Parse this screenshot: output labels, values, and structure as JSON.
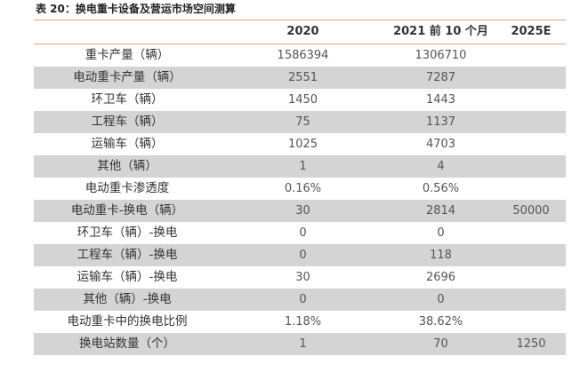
{
  "caption": "表 20：换电重卡设备及营运市场空间测算",
  "table": {
    "headers": [
      "",
      "2020",
      "2021 前 10 个月",
      "2025E"
    ],
    "rows": [
      {
        "label": "重卡产量（辆）",
        "v2020": "1586394",
        "v2021": "1306710",
        "v2025": "",
        "shaded": false
      },
      {
        "label": "电动重卡产量（辆）",
        "v2020": "2551",
        "v2021": "7287",
        "v2025": "",
        "shaded": true
      },
      {
        "label": "环卫车（辆）",
        "v2020": "1450",
        "v2021": "1443",
        "v2025": "",
        "shaded": false
      },
      {
        "label": "工程车（辆）",
        "v2020": "75",
        "v2021": "1137",
        "v2025": "",
        "shaded": true
      },
      {
        "label": "运输车（辆）",
        "v2020": "1025",
        "v2021": "4703",
        "v2025": "",
        "shaded": false
      },
      {
        "label": "其他（辆）",
        "v2020": "1",
        "v2021": "4",
        "v2025": "",
        "shaded": true
      },
      {
        "label": "电动重卡渗透度",
        "v2020": "0.16%",
        "v2021": "0.56%",
        "v2025": "",
        "shaded": false
      },
      {
        "label": "电动重卡-换电（辆）",
        "v2020": "30",
        "v2021": "2814",
        "v2025": "50000",
        "shaded": true
      },
      {
        "label": "环卫车（辆）-换电",
        "v2020": "0",
        "v2021": "0",
        "v2025": "",
        "shaded": false
      },
      {
        "label": "工程车（辆）-换电",
        "v2020": "0",
        "v2021": "118",
        "v2025": "",
        "shaded": true
      },
      {
        "label": "运输车（辆）-换电",
        "v2020": "30",
        "v2021": "2696",
        "v2025": "",
        "shaded": false
      },
      {
        "label": "其他（辆）-换电",
        "v2020": "0",
        "v2021": "0",
        "v2025": "",
        "shaded": true
      },
      {
        "label": "电动重卡中的换电比例",
        "v2020": "1.18%",
        "v2021": "38.62%",
        "v2025": "",
        "shaded": false
      },
      {
        "label": "换电站数量（个）",
        "v2020": "1",
        "v2021": "70",
        "v2025": "1250",
        "shaded": true
      }
    ]
  }
}
